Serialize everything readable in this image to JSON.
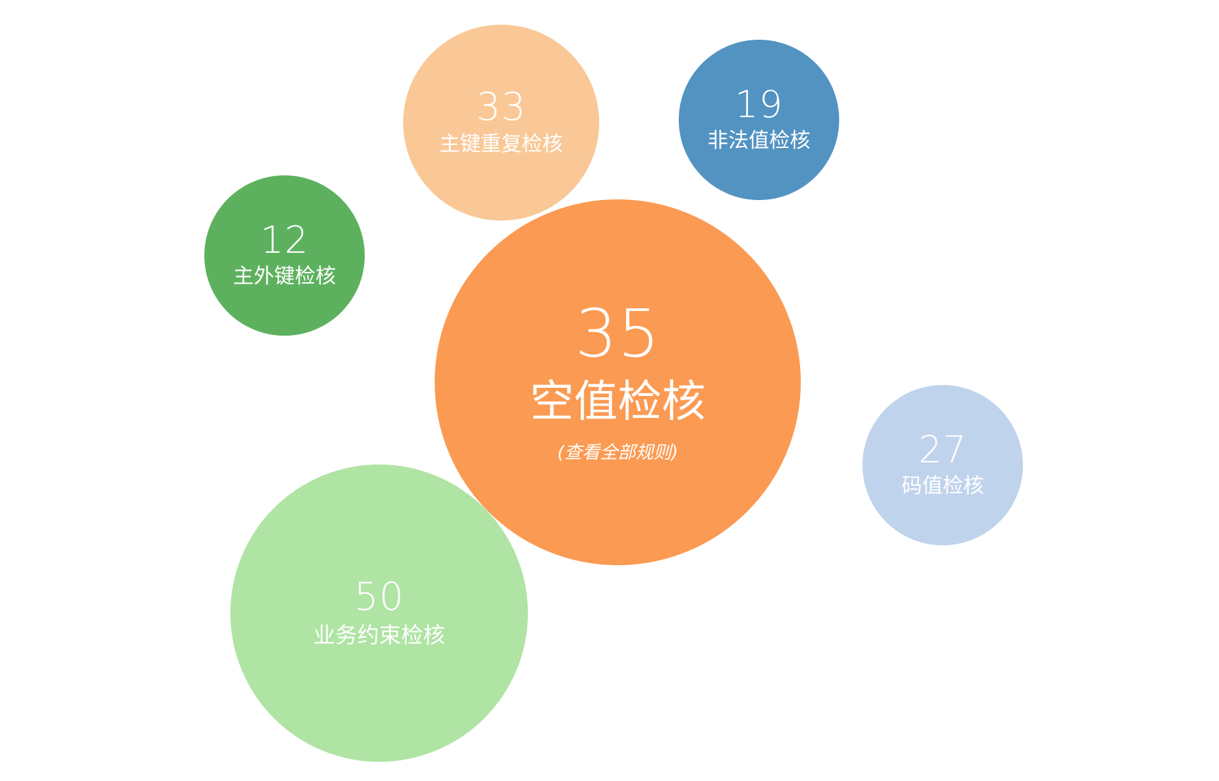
{
  "bubbles": {
    "pk_duplicate": {
      "count": "33",
      "label": "主键重复检核",
      "color": "#f9c896"
    },
    "illegal_value": {
      "count": "19",
      "label": "非法值检核",
      "color": "#5293c2"
    },
    "foreign_key": {
      "count": "12",
      "label": "主外键检核",
      "color": "#5db15e"
    },
    "null_value": {
      "count": "35",
      "label": "空值检核",
      "link": "(查看全部规则)",
      "color": "#fb9a52"
    },
    "code_value": {
      "count": "27",
      "label": "码值检核",
      "color": "#c0d3ec"
    },
    "business_constraint": {
      "count": "50",
      "label": "业务约束检核",
      "color": "#afe4a4"
    }
  }
}
